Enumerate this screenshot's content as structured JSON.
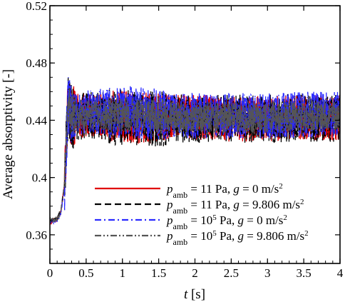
{
  "chart_data": {
    "type": "line",
    "xlabel": {
      "var": "t",
      "unit": " [s]"
    },
    "ylabel": "Average absorptivity [-]",
    "xlim": [
      0,
      4
    ],
    "ylim": [
      0.34,
      0.52
    ],
    "xticks": [
      0,
      0.5,
      1,
      1.5,
      2,
      2.5,
      3,
      3.5,
      4
    ],
    "xtick_labels": [
      "0",
      "0.5",
      "1",
      "1.5",
      "2",
      "2.5",
      "3",
      "3.5",
      "4"
    ],
    "yticks": [
      0.36,
      0.4,
      0.44,
      0.48,
      0.52
    ],
    "ytick_labels": [
      "0.36",
      "0.4",
      "0.44",
      "0.48",
      "0.52"
    ],
    "grid": false,
    "legend_position": "bottom-right",
    "series": [
      {
        "name": "p_amb = 11 Pa, g = 0 m/s^2",
        "legend": {
          "p_sub": "amb",
          "rest1": " = 11 Pa, ",
          "gvar": "g",
          "rest2": " = 0 m/s",
          "sup": "2"
        },
        "color": "#e00000",
        "dash": "solid",
        "x": [
          0,
          0.1,
          0.15,
          0.2,
          0.25,
          0.3,
          0.5,
          1.0,
          1.5,
          2.0,
          2.5,
          3.0,
          3.5,
          4.0
        ],
        "y": [
          0.369,
          0.371,
          0.376,
          0.394,
          0.452,
          0.442,
          0.443,
          0.442,
          0.442,
          0.442,
          0.441,
          0.441,
          0.442,
          0.442
        ],
        "noise_amp": 0.016
      },
      {
        "name": "p_amb = 11 Pa, g = 9.806 m/s^2",
        "legend": {
          "p_sub": "amb",
          "rest1": " = 11 Pa, ",
          "gvar": "g",
          "rest2": " = 9.806 m/s",
          "sup": "2"
        },
        "color": "#000000",
        "dash": "dashed",
        "x": [
          0,
          0.1,
          0.15,
          0.2,
          0.25,
          0.3,
          0.5,
          1.0,
          1.5,
          2.0,
          2.5,
          3.0,
          3.5,
          4.0
        ],
        "y": [
          0.37,
          0.371,
          0.377,
          0.395,
          0.453,
          0.442,
          0.443,
          0.442,
          0.441,
          0.441,
          0.441,
          0.441,
          0.442,
          0.442
        ],
        "noise_amp": 0.017
      },
      {
        "name": "p_amb = 10^5 Pa, g = 0 m/s^2",
        "legend": {
          "p_sub": "amb",
          "rest1": " = 10",
          "p_sup": "5",
          "rest1b": " Pa, ",
          "gvar": "g",
          "rest2": " = 0 m/s",
          "sup": "2"
        },
        "color": "#2a2aff",
        "dash": "dashdot",
        "x": [
          0,
          0.1,
          0.15,
          0.2,
          0.25,
          0.3,
          0.5,
          1.0,
          1.5,
          2.0,
          2.5,
          3.0,
          3.5,
          4.0
        ],
        "y": [
          0.369,
          0.37,
          0.375,
          0.393,
          0.45,
          0.444,
          0.446,
          0.446,
          0.444,
          0.443,
          0.443,
          0.443,
          0.444,
          0.444
        ],
        "noise_amp": 0.016
      },
      {
        "name": "p_amb = 10^5 Pa, g = 9.806 m/s^2",
        "legend": {
          "p_sub": "amb",
          "rest1": " = 10",
          "p_sup": "5",
          "rest1b": " Pa, ",
          "gvar": "g",
          "rest2": " = 9.806 m/s",
          "sup": "2"
        },
        "color": "#555555",
        "dash": "dashdotdot",
        "x": [
          0,
          0.1,
          0.15,
          0.2,
          0.25,
          0.3,
          0.5,
          1.0,
          1.5,
          2.0,
          2.5,
          3.0,
          3.5,
          4.0
        ],
        "y": [
          0.37,
          0.371,
          0.376,
          0.394,
          0.451,
          0.443,
          0.444,
          0.444,
          0.443,
          0.442,
          0.442,
          0.442,
          0.443,
          0.443
        ],
        "noise_amp": 0.011
      }
    ]
  }
}
